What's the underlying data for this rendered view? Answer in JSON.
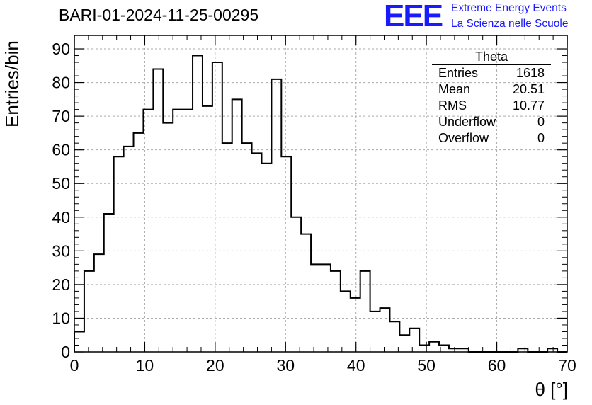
{
  "header": {
    "title": "BARI-01-2024-11-25-00295",
    "logo_text": "EEE",
    "org_line1": "Extreme Energy Events",
    "org_line2": "La Scienza nelle Scuole"
  },
  "stats_box": {
    "title": "Theta",
    "rows": [
      {
        "label": "Entries",
        "value": "1618"
      },
      {
        "label": "Mean",
        "value": "20.51"
      },
      {
        "label": "RMS",
        "value": "10.77"
      },
      {
        "label": "Underflow",
        "value": "0"
      },
      {
        "label": "Overflow",
        "value": "0"
      }
    ]
  },
  "chart_data": {
    "type": "bar",
    "histogram": true,
    "bin_width": 1.4,
    "x": [
      0.7,
      2.1,
      3.5,
      4.9,
      6.3,
      7.7,
      9.1,
      10.5,
      11.9,
      13.3,
      14.7,
      16.1,
      17.5,
      18.9,
      20.3,
      21.7,
      23.1,
      24.5,
      25.9,
      27.3,
      28.7,
      30.1,
      31.5,
      32.9,
      34.3,
      35.7,
      37.1,
      38.5,
      39.9,
      41.3,
      42.7,
      44.1,
      45.5,
      46.9,
      48.3,
      49.7,
      51.1,
      52.5,
      53.9,
      55.3,
      56.7,
      58.1,
      59.5,
      60.9,
      62.3,
      63.7,
      65.1,
      66.5,
      67.9,
      69.3
    ],
    "values": [
      6,
      24,
      29,
      41,
      58,
      61,
      65,
      72,
      84,
      68,
      72,
      72,
      88,
      73,
      86,
      62,
      75,
      62,
      59,
      56,
      81,
      58,
      40,
      35,
      26,
      26,
      24,
      18,
      16,
      24,
      12,
      13,
      9,
      5,
      7,
      2,
      3,
      2,
      1,
      1,
      0,
      0,
      0,
      0,
      0,
      1,
      0,
      0,
      1,
      0
    ],
    "xlabel": "θ [°]",
    "ylabel": "Entries/bin",
    "xlim": [
      0,
      70
    ],
    "ylim": [
      0,
      94
    ],
    "x_ticks": [
      0,
      10,
      20,
      30,
      40,
      50,
      60,
      70
    ],
    "y_ticks": [
      0,
      10,
      20,
      30,
      40,
      50,
      60,
      70,
      80,
      90
    ],
    "grid": true,
    "line_color": "#000000"
  }
}
